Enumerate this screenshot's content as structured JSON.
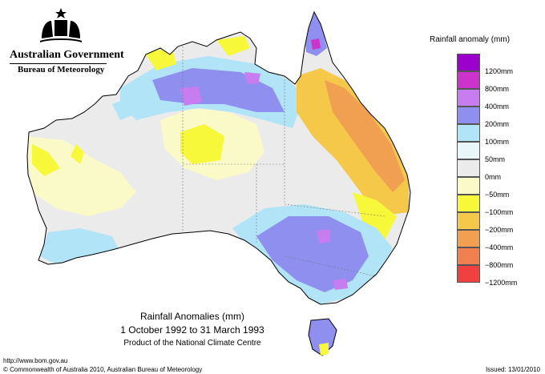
{
  "header": {
    "government": "Australian Government",
    "bureau": "Bureau of Meteorology"
  },
  "map": {
    "title": "Rainfall Anomalies (mm)",
    "period": "1 October 1992 to 31 March 1993",
    "product": "Product of the National Climate Centre"
  },
  "legend": {
    "title": "Rainfall anomaly (mm)",
    "items": [
      {
        "label": "1200mm",
        "color": "#9c00cc"
      },
      {
        "label": "800mm",
        "color": "#cc33cc"
      },
      {
        "label": "400mm",
        "color": "#c77cf0"
      },
      {
        "label": "200mm",
        "color": "#8f8ff0"
      },
      {
        "label": "100mm",
        "color": "#b0e4f6"
      },
      {
        "label": "50mm",
        "color": "#e9f7fa"
      },
      {
        "label": "0mm",
        "color": "#ebebeb"
      },
      {
        "label": "−50mm",
        "color": "#fafac8"
      },
      {
        "label": "−100mm",
        "color": "#f8f83a"
      },
      {
        "label": "−200mm",
        "color": "#f5c84a"
      },
      {
        "label": "−400mm",
        "color": "#f0a050"
      },
      {
        "label": "−800mm",
        "color": "#f08050"
      },
      {
        "label": "−1200mm",
        "color": "#f04040"
      }
    ]
  },
  "footer": {
    "url": "http://www.bom.gov.au",
    "copyright": "© Commonwealth of Australia 2010, Australian Bureau of Meteorology",
    "issued": "Issued: 13/01/2010"
  }
}
